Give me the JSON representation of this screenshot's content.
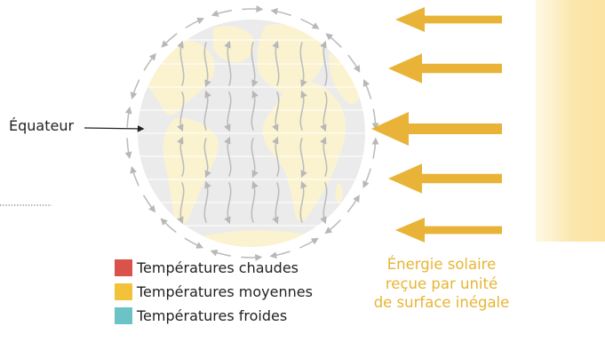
{
  "labels": {
    "equator": "Équateur"
  },
  "legend": {
    "items": [
      {
        "label": "Températures chaudes",
        "color": "#d9534a"
      },
      {
        "label": "Températures moyennes",
        "color": "#f2c33a"
      },
      {
        "label": "Températures froides",
        "color": "#6cc3c6"
      }
    ]
  },
  "energy_caption": {
    "lines": [
      "Énergie solaire",
      "reçue par unité",
      "de surface inégale"
    ]
  },
  "colors": {
    "sun_band": "#fbe9b6",
    "arrow": "#e8b336",
    "circulation_arrow": "#bdbdbd",
    "caption": "#e7b534",
    "globe_ocean": "#e9e9e9",
    "globe_land": "#fbf3cf"
  },
  "solar_arrows": {
    "count": 5,
    "relative_intensity": [
      0.55,
      0.8,
      1,
      0.8,
      0.55
    ]
  }
}
